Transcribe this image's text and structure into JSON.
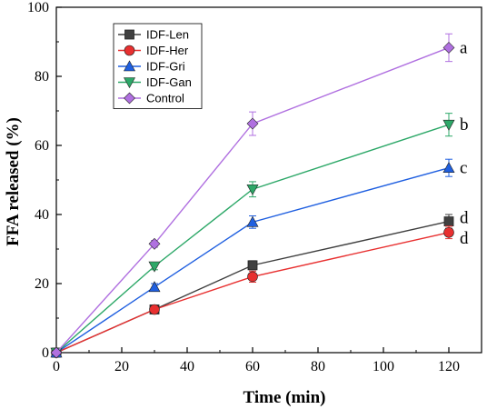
{
  "chart_data": {
    "type": "line",
    "xlabel": "Time (min)",
    "ylabel": "FFA released (%)",
    "xlim": [
      0,
      130
    ],
    "ylim": [
      0,
      100
    ],
    "x_ticks": [
      0,
      20,
      40,
      60,
      80,
      100,
      120
    ],
    "y_ticks": [
      0,
      20,
      40,
      60,
      80,
      100
    ],
    "grid": false,
    "legend_position": "top-left",
    "x": [
      0,
      30,
      60,
      120
    ],
    "series": [
      {
        "name": "IDF-Len",
        "values": [
          0,
          12.5,
          25.3,
          38.0
        ],
        "errors": [
          0,
          0.5,
          1.3,
          2.0
        ],
        "color": "#404040",
        "marker": "square",
        "label": "d"
      },
      {
        "name": "IDF-Her",
        "values": [
          0,
          12.5,
          22.0,
          34.8
        ],
        "errors": [
          0,
          0.5,
          1.6,
          1.8
        ],
        "color": "#e83030",
        "marker": "circle",
        "label": "d"
      },
      {
        "name": "IDF-Gri",
        "values": [
          0,
          19.0,
          37.8,
          53.5
        ],
        "errors": [
          0,
          1.0,
          1.8,
          2.5
        ],
        "color": "#1f5fe0",
        "marker": "triangle-up",
        "label": "c"
      },
      {
        "name": "IDF-Gan",
        "values": [
          0,
          25.0,
          47.3,
          66.0
        ],
        "errors": [
          0,
          1.0,
          2.2,
          3.3
        ],
        "color": "#2da868",
        "marker": "triangle-down",
        "label": "b"
      },
      {
        "name": "Control",
        "values": [
          0,
          31.5,
          66.3,
          88.3
        ],
        "errors": [
          0,
          1.0,
          3.4,
          4.0
        ],
        "color": "#b070e0",
        "marker": "diamond",
        "label": "a"
      }
    ]
  }
}
